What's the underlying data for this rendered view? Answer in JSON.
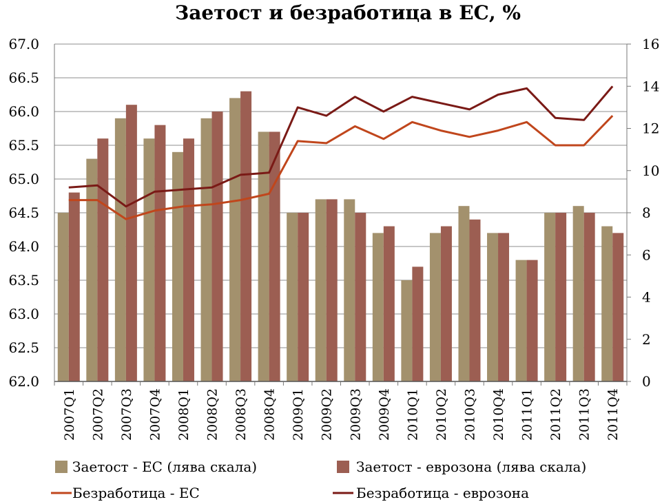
{
  "chart_data": {
    "type": "bar",
    "title": "Заетост и безработица в ЕС, %",
    "categories": [
      "2007Q1",
      "2007Q2",
      "2007Q3",
      "2007Q4",
      "2008Q1",
      "2008Q2",
      "2008Q3",
      "2008Q4",
      "2009Q1",
      "2009Q2",
      "2009Q3",
      "2009Q4",
      "2010Q1",
      "2010Q2",
      "2010Q3",
      "2010Q4",
      "2011Q1",
      "2011Q2",
      "2011Q3",
      "2011Q4"
    ],
    "left_axis": {
      "ylim": [
        62.0,
        67.0
      ],
      "ticks": [
        "62.0",
        "62.5",
        "63.0",
        "63.5",
        "64.0",
        "64.5",
        "65.0",
        "65.5",
        "66.0",
        "66.5",
        "67.0"
      ]
    },
    "right_axis": {
      "ylim": [
        0,
        16
      ],
      "ticks": [
        "0",
        "2",
        "4",
        "6",
        "8",
        "10",
        "12",
        "14",
        "16"
      ]
    },
    "grid": true,
    "legend_position": "bottom",
    "series": [
      {
        "name": "Заетост - ЕС (лява скала)",
        "kind": "bar",
        "axis": "left",
        "color": "#a3916d",
        "values": [
          64.5,
          65.3,
          65.9,
          65.6,
          65.4,
          65.9,
          66.2,
          65.7,
          64.5,
          64.7,
          64.7,
          64.2,
          63.5,
          64.2,
          64.6,
          64.2,
          63.8,
          64.5,
          64.6,
          64.3
        ]
      },
      {
        "name": "Заетост - еврозона (лява скала)",
        "kind": "bar",
        "axis": "left",
        "color": "#9c5e52",
        "values": [
          64.8,
          65.6,
          66.1,
          65.8,
          65.6,
          66.0,
          66.3,
          65.7,
          64.5,
          64.7,
          64.5,
          64.3,
          63.7,
          64.3,
          64.4,
          64.2,
          63.8,
          64.5,
          64.5,
          64.2
        ]
      },
      {
        "name": "Безработица - ЕС",
        "kind": "line",
        "axis": "right",
        "color": "#c0461c",
        "values": [
          8.6,
          8.6,
          7.7,
          8.1,
          8.3,
          8.4,
          8.6,
          8.9,
          11.4,
          11.3,
          12.1,
          11.5,
          12.3,
          11.9,
          11.6,
          11.9,
          12.3,
          11.2,
          11.2,
          12.6
        ]
      },
      {
        "name": "Безработица - еврозона",
        "kind": "line",
        "axis": "right",
        "color": "#7a1a16",
        "values": [
          9.2,
          9.3,
          8.3,
          9.0,
          9.1,
          9.2,
          9.8,
          9.9,
          13.0,
          12.6,
          13.5,
          12.8,
          13.5,
          13.2,
          12.9,
          13.6,
          13.9,
          12.5,
          12.4,
          14.0
        ]
      }
    ]
  }
}
